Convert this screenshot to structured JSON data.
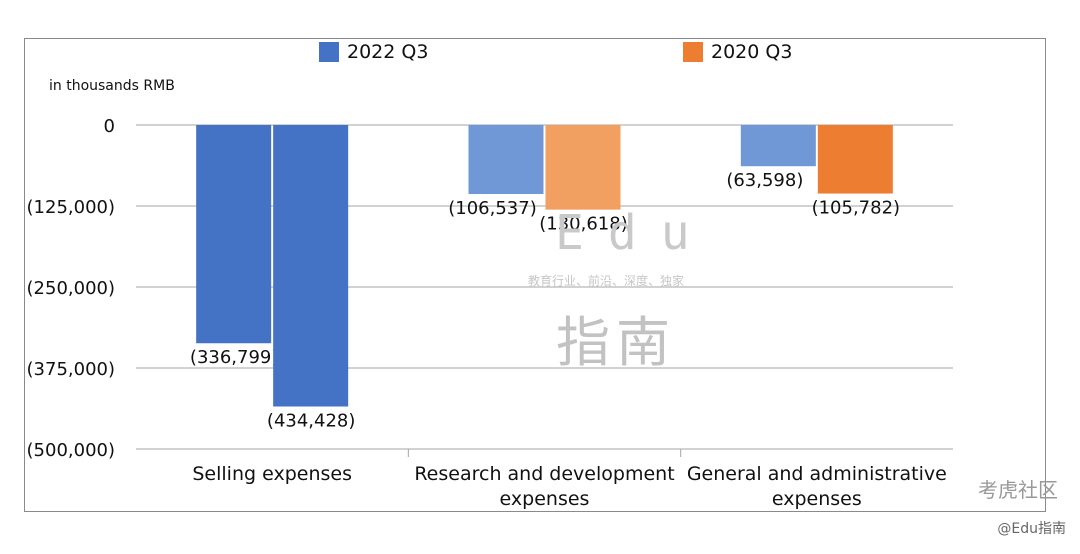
{
  "chart_data": {
    "type": "bar",
    "categories": [
      "Selling expenses",
      "Research and development expenses",
      "General and administrative expenses"
    ],
    "category_lines": [
      [
        "Selling expenses"
      ],
      [
        "Research and development",
        "expenses"
      ],
      [
        "General and administrative",
        "expenses"
      ]
    ],
    "series": [
      {
        "name": "2022 Q3",
        "color": "#4472c4",
        "values": [
          -336799,
          -106537,
          -63598
        ],
        "labels": [
          "(336,799)",
          "(106,537)",
          "(63,598)"
        ]
      },
      {
        "name": "2020 Q3",
        "color": "#ed7d31",
        "values": [
          -434428,
          -130618,
          -105782
        ],
        "labels": [
          "(434,428)",
          "(130,618)",
          "(105,782)"
        ]
      }
    ],
    "bar_colors": [
      [
        "#4472c4",
        "#4472c4"
      ],
      [
        "#7097d6",
        "#f2a062"
      ],
      [
        "#7097d6",
        "#ed7d31"
      ]
    ],
    "ylim": [
      -500000,
      0
    ],
    "yticks": [
      0,
      -125000,
      -250000,
      -375000,
      -500000
    ],
    "ytick_labels": [
      "0",
      "(125,000)",
      "(250,000)",
      "(375,000)",
      "(500,000)"
    ],
    "ylabel": "in thousands RMB",
    "xlabel": "",
    "grid": true,
    "legend_position": "top"
  },
  "watermark": {
    "edu": "Edu",
    "tagline": "教育行业、前沿、深度、独家",
    "cn": "指南",
    "source": "考虎社区",
    "credit": "@Edu指南"
  }
}
